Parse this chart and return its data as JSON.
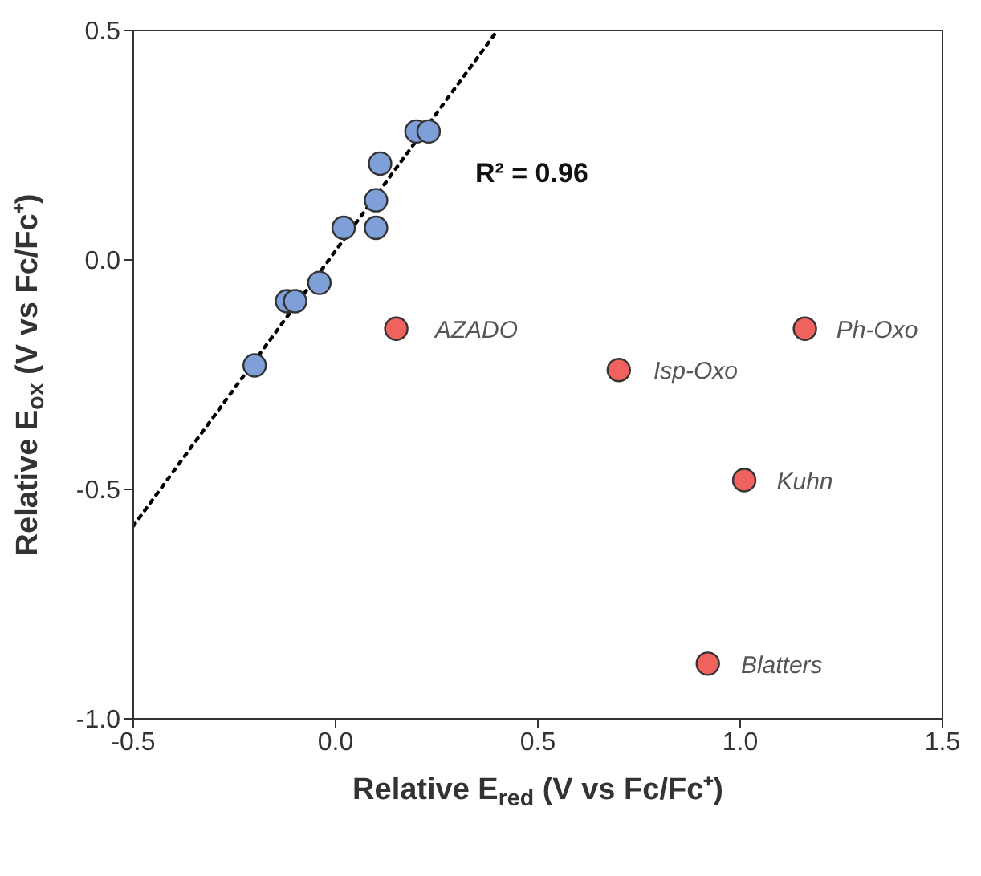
{
  "chart_data": {
    "type": "scatter",
    "xlabel": "Relative E$_{red}$ (V vs Fc/Fc⁺)",
    "ylabel": "Relative E$_{ox}$ (V vs Fc/Fc⁺)",
    "xlim": [
      -0.5,
      1.5
    ],
    "xticks": [
      {
        "value": -0.5,
        "label": "-0.5"
      },
      {
        "value": 0,
        "label": "0.0"
      },
      {
        "value": 0.5,
        "label": "0.5"
      },
      {
        "value": 1,
        "label": "1.0"
      },
      {
        "value": 1.5,
        "label": "1.5"
      }
    ],
    "ylim": [
      -1,
      0.5
    ],
    "yticks": [
      {
        "value": -1,
        "label": "-1.0"
      },
      {
        "value": -0.5,
        "label": "-0.5"
      },
      {
        "value": 0,
        "label": "0.0"
      },
      {
        "value": 0.5,
        "label": "0.5"
      }
    ],
    "marker": "circle",
    "series": [
      {
        "color": "#7f9fd8",
        "x": [
          -0.2,
          -0.12,
          -0.1,
          -0.04,
          0.02,
          0.1,
          0.1,
          0.11,
          0.2,
          0.23
        ],
        "values": [
          -0.23,
          -0.09,
          -0.09,
          -0.05,
          0.07,
          0.07,
          0.13,
          0.21,
          0.28,
          0.28
        ]
      },
      {
        "color": "#f0625e",
        "x": [
          0.15,
          0.7,
          1.16,
          1.01,
          0.92
        ],
        "values": [
          -0.15,
          -0.24,
          -0.15,
          -0.48,
          -0.88
        ]
      },
      {
        "type": "line",
        "color": "#000000",
        "line_style": "dotted",
        "marker": "none",
        "x": [
          -0.5,
          0.4
        ],
        "values": [
          -0.58,
          0.5
        ]
      }
    ],
    "annotations": [
      "R² = 0.96",
      {
        "text": "AZADO",
        "x": 0.15,
        "y": -0.15
      },
      {
        "text": "Isp-Oxo",
        "x": 0.7,
        "y": -0.24
      },
      {
        "text": "Ph-Oxo",
        "x": 1.16,
        "y": -0.15
      },
      {
        "text": "Kuhn",
        "x": 1.01,
        "y": -0.48
      },
      {
        "text": "Blatters",
        "x": 0.92,
        "y": -0.88
      }
    ]
  }
}
